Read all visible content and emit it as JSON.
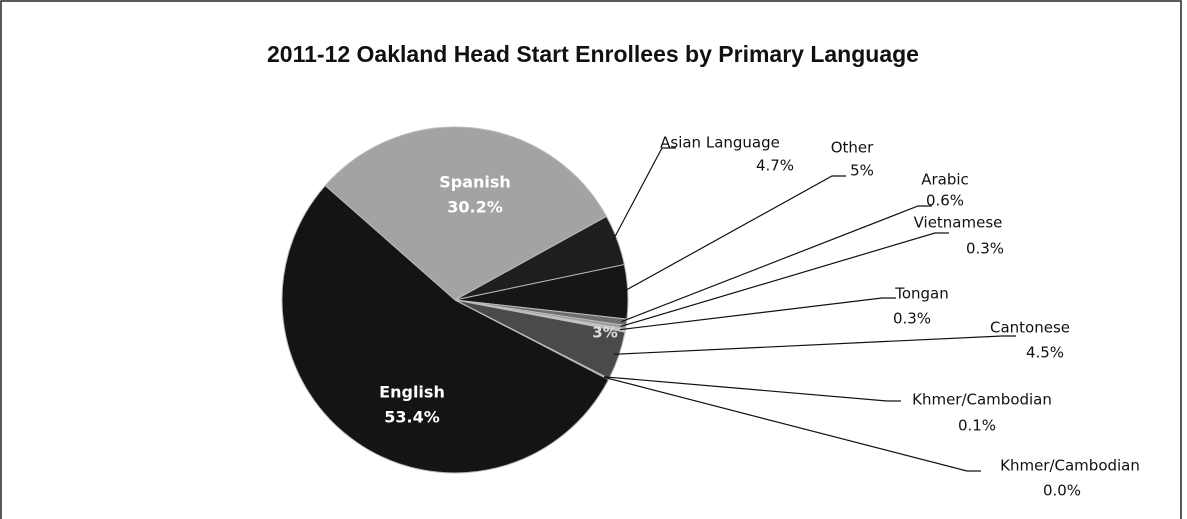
{
  "chart_data": {
    "type": "pie",
    "title": "2011-12 Oakland Head Start Enrollees by Primary Language",
    "categories": [
      "Spanish",
      "Asian Language",
      "Other",
      "Arabic",
      "Vietnamese",
      "Tongan",
      "Cantonese",
      "Khmer/Cambodian",
      "Khmer/Cambodian",
      "English"
    ],
    "values": [
      30.2,
      4.7,
      5,
      0.6,
      0.3,
      0.3,
      4.5,
      0.1,
      0.0,
      53.4
    ],
    "value_labels": [
      "30.2%",
      "4.7%",
      "5%",
      "0.6%",
      "0.3%",
      "0.3%",
      "4.5%",
      "0.1%",
      "0.0%",
      "53.4%"
    ],
    "colors": [
      "#a3a3a3",
      "#1e1e1e",
      "#161616",
      "#6e6e6e",
      "#9a9a9a",
      "#c4c4c4",
      "#4a4a4a",
      "#2a2a2a",
      "#333333",
      "#141414"
    ],
    "annotation": "3%"
  }
}
